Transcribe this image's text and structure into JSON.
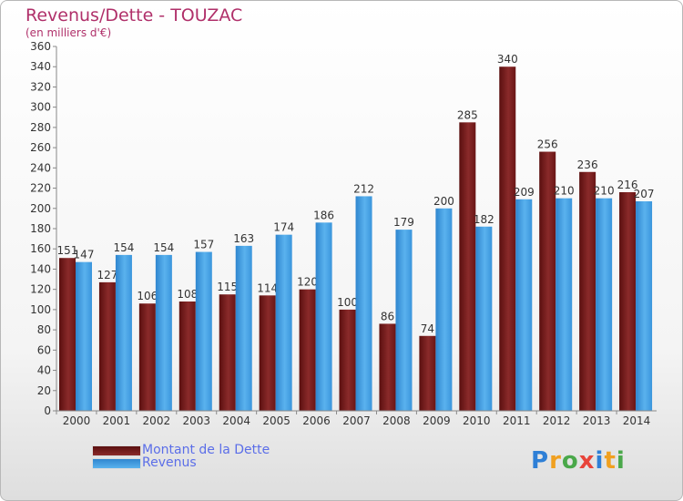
{
  "header": {
    "title": "Revenus/Dette - TOUZAC",
    "subtitle": "(en milliers d'€)"
  },
  "legend": {
    "debt_label": "Montant de la Dette",
    "revenue_label": "Revenus"
  },
  "logo": {
    "text": "Proxiti"
  },
  "colors": {
    "debt": "#7a1c1c",
    "revenue": "#3d9be0",
    "title": "#b0306a",
    "legend_text": "#5b6ee8"
  },
  "chart_data": {
    "type": "bar",
    "title": "Revenus/Dette - TOUZAC",
    "subtitle": "(en milliers d'€)",
    "categories": [
      "2000",
      "2001",
      "2002",
      "2003",
      "2004",
      "2005",
      "2006",
      "2007",
      "2008",
      "2009",
      "2010",
      "2011",
      "2012",
      "2013",
      "2014"
    ],
    "series": [
      {
        "name": "Montant de la Dette",
        "values": [
          151,
          127,
          106,
          108,
          115,
          114,
          120,
          100,
          86,
          74,
          285,
          340,
          256,
          236,
          216
        ]
      },
      {
        "name": "Revenus",
        "values": [
          147,
          154,
          154,
          157,
          163,
          174,
          186,
          212,
          179,
          200,
          182,
          209,
          210,
          210,
          207
        ]
      }
    ],
    "ylim": [
      0,
      360
    ],
    "yticks": [
      0,
      20,
      40,
      60,
      80,
      100,
      120,
      140,
      160,
      180,
      200,
      220,
      240,
      260,
      280,
      300,
      320,
      340,
      360
    ],
    "grid": false,
    "legend_position": "bottom-left"
  }
}
